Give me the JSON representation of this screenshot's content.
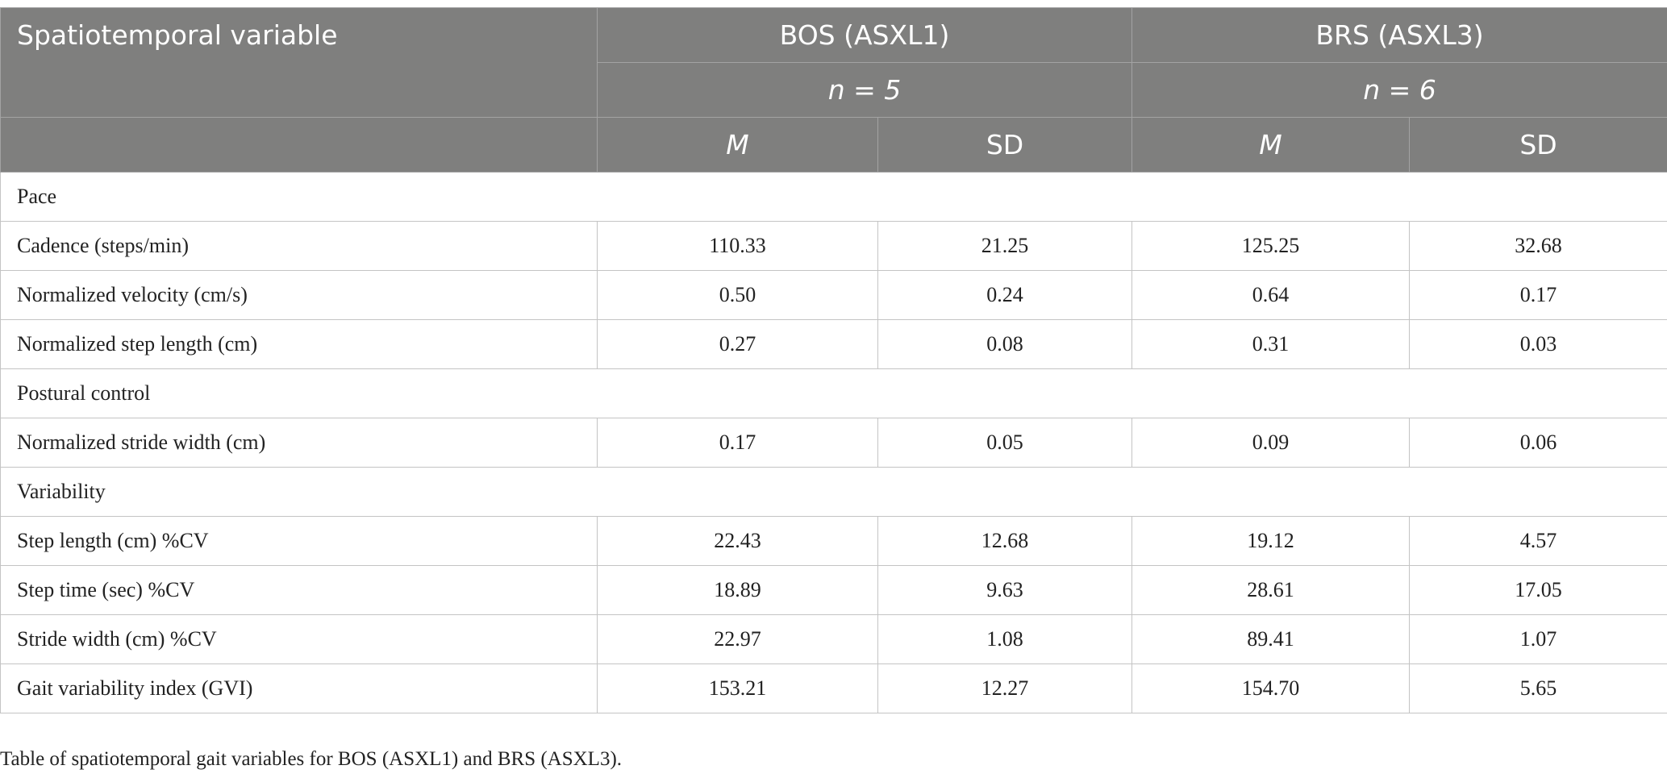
{
  "table": {
    "header": {
      "first": "Spatiotemporal variable",
      "groups": [
        {
          "label": "BOS (ASXL1)",
          "n": "n = 5"
        },
        {
          "label": "BRS (ASXL3)",
          "n": "n = 6"
        }
      ],
      "sub": [
        "M",
        "SD",
        "M",
        "SD"
      ]
    },
    "rows": [
      {
        "label": "Pace"
      },
      {
        "label": "Cadence (steps/min)",
        "cells": [
          "110.33",
          "21.25",
          "125.25",
          "32.68"
        ]
      },
      {
        "label": "Normalized velocity (cm/s)",
        "cells": [
          "0.50",
          "0.24",
          "0.64",
          "0.17"
        ]
      },
      {
        "label": "Normalized step length (cm)",
        "cells": [
          "0.27",
          "0.08",
          "0.31",
          "0.03"
        ]
      },
      {
        "label": "Postural control"
      },
      {
        "label": "Normalized stride width (cm)",
        "cells": [
          "0.17",
          "0.05",
          "0.09",
          "0.06"
        ]
      },
      {
        "label": "Variability"
      },
      {
        "label": "Step length (cm) %CV",
        "cells": [
          "22.43",
          "12.68",
          "19.12",
          "4.57"
        ]
      },
      {
        "label": "Step time (sec) %CV",
        "cells": [
          "18.89",
          "9.63",
          "28.61",
          "17.05"
        ]
      },
      {
        "label": "Stride width (cm) %CV",
        "cells": [
          "22.97",
          "1.08",
          "89.41",
          "1.07"
        ]
      },
      {
        "label": "Gait variability index (GVI)",
        "cells": [
          "153.21",
          "12.27",
          "154.70",
          "5.65"
        ]
      }
    ],
    "caption": "Table of spatiotemporal gait variables for BOS (ASXL1) and BRS (ASXL3)."
  }
}
